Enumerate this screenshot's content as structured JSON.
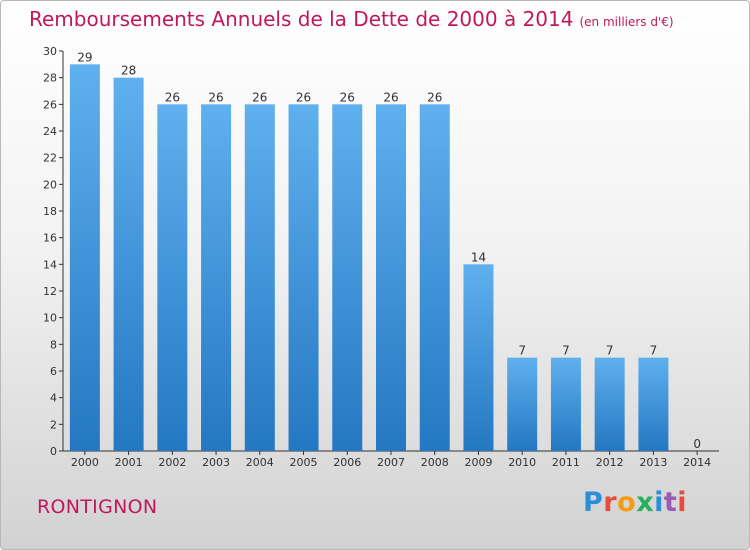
{
  "chart_data": {
    "type": "bar",
    "title": "Remboursements Annuels de la Dette de 2000 à 2014",
    "unit_note": "(en milliers d'€)",
    "categories": [
      "2000",
      "2001",
      "2002",
      "2003",
      "2004",
      "2005",
      "2006",
      "2007",
      "2008",
      "2009",
      "2010",
      "2011",
      "2012",
      "2013",
      "2014"
    ],
    "values": [
      29,
      28,
      26,
      26,
      26,
      26,
      26,
      26,
      26,
      14,
      7,
      7,
      7,
      7,
      0
    ],
    "ylim": [
      0,
      30
    ],
    "yticks": [
      0,
      2,
      4,
      6,
      8,
      10,
      12,
      14,
      16,
      18,
      20,
      22,
      24,
      26,
      28,
      30
    ],
    "xlabel": "",
    "ylabel": "",
    "grid": false,
    "bar_color": "#3a8fd6"
  },
  "footer": {
    "commune": "RONTIGNON",
    "logo": {
      "text": "Proxiti",
      "letter_colors": [
        "#2a8ed8",
        "#e74c3c",
        "#f39c12",
        "#27ae60",
        "#2a8ed8",
        "#9b59b6",
        "#e74c3c"
      ]
    }
  }
}
